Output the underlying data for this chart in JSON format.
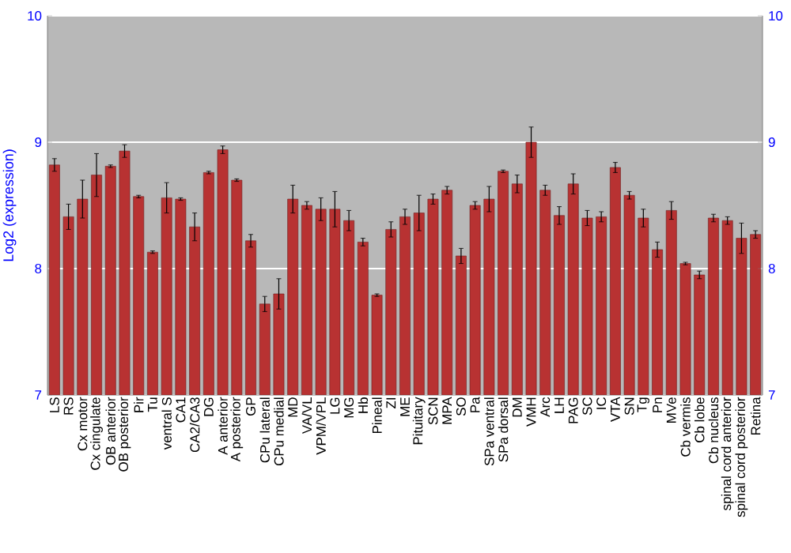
{
  "chart_data": {
    "type": "bar",
    "ylabel": "Log2 (expression)",
    "color": "#b83232",
    "categories": [
      "LS",
      "RS",
      "Cx motor",
      "Cx cingulate",
      "OB anterior",
      "OB posterior",
      "Pir",
      "Tu",
      "ventral S",
      "CA1",
      "CA2/CA3",
      "DG",
      "A anterior",
      "A posterior",
      "GP",
      "CPu lateral",
      "CPu medial",
      "MD",
      "VA/VL",
      "VPM/VPL",
      "LG",
      "MG",
      "Hb",
      "Pineal",
      "ZI",
      "ME",
      "Pituitary",
      "SCN",
      "MPA",
      "SO",
      "Pa",
      "SPa ventral",
      "SPa dorsal",
      "DM",
      "VMH",
      "Arc",
      "LH",
      "PAG",
      "SC",
      "IC",
      "VTA",
      "SN",
      "Tg",
      "Pn",
      "MVe",
      "Cb vermis",
      "Cb lobe",
      "Cb nucleus",
      "spinal cord anterior",
      "spinal cord posterior",
      "Retina"
    ],
    "values": [
      8.82,
      8.41,
      8.55,
      8.74,
      8.81,
      8.93,
      8.57,
      8.13,
      8.56,
      8.55,
      8.33,
      8.76,
      8.94,
      8.7,
      8.22,
      7.72,
      7.8,
      8.55,
      8.5,
      8.47,
      8.47,
      8.38,
      8.21,
      7.79,
      8.31,
      8.41,
      8.44,
      8.55,
      8.62,
      8.1,
      8.5,
      8.55,
      8.77,
      8.67,
      9.0,
      8.62,
      8.42,
      8.67,
      8.4,
      8.41,
      8.8,
      8.58,
      8.4,
      8.15,
      8.46,
      8.04,
      7.95,
      8.4,
      8.38,
      8.24,
      8.27
    ],
    "errors": [
      0.05,
      0.1,
      0.15,
      0.17,
      0.01,
      0.05,
      0.01,
      0.01,
      0.12,
      0.01,
      0.11,
      0.01,
      0.03,
      0.01,
      0.05,
      0.06,
      0.12,
      0.11,
      0.03,
      0.09,
      0.14,
      0.08,
      0.03,
      0.01,
      0.06,
      0.06,
      0.14,
      0.04,
      0.03,
      0.06,
      0.03,
      0.1,
      0.01,
      0.07,
      0.12,
      0.04,
      0.07,
      0.08,
      0.06,
      0.04,
      0.04,
      0.03,
      0.07,
      0.06,
      0.07,
      0.01,
      0.03,
      0.03,
      0.03,
      0.12,
      0.03
    ],
    "ylim": [
      7,
      10
    ],
    "yticks": [
      7,
      8,
      9,
      10
    ],
    "y2lim": [
      7,
      10
    ],
    "y2ticks": [
      7,
      8,
      9,
      10
    ],
    "grid": "y"
  }
}
